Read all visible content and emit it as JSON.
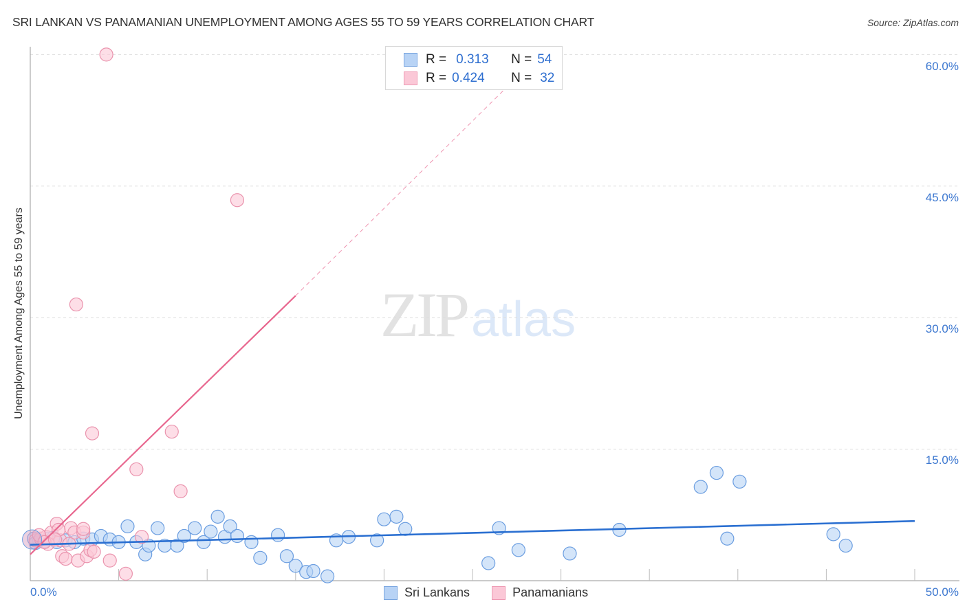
{
  "header": {
    "title": "SRI LANKAN VS PANAMANIAN UNEMPLOYMENT AMONG AGES 55 TO 59 YEARS CORRELATION CHART",
    "source": "Source: ZipAtlas.com"
  },
  "watermark": {
    "zip": "ZIP",
    "atlas": "atlas"
  },
  "legend_top": {
    "rows": [
      {
        "r_label": "R =",
        "r_value": "0.313",
        "n_label": "N =",
        "n_value": "54",
        "color": "#b8d3f5"
      },
      {
        "r_label": "R =",
        "r_value": "0.424",
        "n_label": "N =",
        "n_value": "32",
        "color": "#fbc8d7"
      }
    ]
  },
  "legend_bottom": {
    "items": [
      {
        "label": "Sri Lankans",
        "color": "#b8d3f5"
      },
      {
        "label": "Panamanians",
        "color": "#fbc8d7"
      }
    ]
  },
  "axes": {
    "ylabel": "Unemployment Among Ages 55 to 59 years",
    "y_ticks": [
      "60.0%",
      "45.0%",
      "30.0%",
      "15.0%"
    ],
    "x_ticks": [
      "0.0%",
      "50.0%"
    ]
  },
  "colors": {
    "blue_fill": "#b8d3f5",
    "blue_stroke": "#6a9de0",
    "blue_line": "#2a6fd1",
    "pink_fill": "#fbc8d7",
    "pink_stroke": "#ea93ad",
    "pink_line": "#e8678f",
    "tick_label": "#3d78d0"
  },
  "chart_data": {
    "type": "scatter",
    "title": "SRI LANKAN VS PANAMANIAN UNEMPLOYMENT AMONG AGES 55 TO 59 YEARS CORRELATION CHART",
    "xlabel": "",
    "ylabel": "Unemployment Among Ages 55 to 59 years",
    "xlim": [
      0,
      50
    ],
    "ylim": [
      0,
      62
    ],
    "x_unit": "%",
    "y_unit": "%",
    "y_gridlines": [
      15,
      30,
      45,
      60
    ],
    "legend_position": "bottom",
    "series": [
      {
        "name": "Sri Lankans",
        "R": 0.313,
        "N": 54,
        "trend": {
          "x": [
            0,
            50
          ],
          "y": [
            4.1,
            6.8
          ]
        },
        "points": [
          [
            0.2,
            4.8
          ],
          [
            0.5,
            4.6
          ],
          [
            1.0,
            4.8
          ],
          [
            1.5,
            4.4
          ],
          [
            2.0,
            4.6
          ],
          [
            2.5,
            4.4
          ],
          [
            3.0,
            4.8
          ],
          [
            3.5,
            4.7
          ],
          [
            4.0,
            5.1
          ],
          [
            4.5,
            4.7
          ],
          [
            5.0,
            4.4
          ],
          [
            5.5,
            6.2
          ],
          [
            6.0,
            4.4
          ],
          [
            6.5,
            3.0
          ],
          [
            6.7,
            4.0
          ],
          [
            7.2,
            6.0
          ],
          [
            7.6,
            4.0
          ],
          [
            8.3,
            4.0
          ],
          [
            8.7,
            5.1
          ],
          [
            9.3,
            6.0
          ],
          [
            9.8,
            4.4
          ],
          [
            10.2,
            5.6
          ],
          [
            10.6,
            7.3
          ],
          [
            11.0,
            5.0
          ],
          [
            11.3,
            6.2
          ],
          [
            11.7,
            5.1
          ],
          [
            12.5,
            4.4
          ],
          [
            13.0,
            2.6
          ],
          [
            14.0,
            5.2
          ],
          [
            14.5,
            2.8
          ],
          [
            15.0,
            1.7
          ],
          [
            15.6,
            1.0
          ],
          [
            16.0,
            1.1
          ],
          [
            16.8,
            0.5
          ],
          [
            17.3,
            4.6
          ],
          [
            18.0,
            5.0
          ],
          [
            19.6,
            4.6
          ],
          [
            20.0,
            7.0
          ],
          [
            20.7,
            7.3
          ],
          [
            21.2,
            5.9
          ],
          [
            25.9,
            2.0
          ],
          [
            26.5,
            6.0
          ],
          [
            27.6,
            3.5
          ],
          [
            30.5,
            3.1
          ],
          [
            33.3,
            5.8
          ],
          [
            37.9,
            10.7
          ],
          [
            38.8,
            12.3
          ],
          [
            39.4,
            4.8
          ],
          [
            40.1,
            11.3
          ],
          [
            45.4,
            5.3
          ],
          [
            46.1,
            4.0
          ],
          [
            0.3,
            4.3
          ],
          [
            0.8,
            4.5
          ],
          [
            1.3,
            4.9
          ]
        ]
      },
      {
        "name": "Panamanians",
        "R": 0.424,
        "N": 32,
        "trend": {
          "x": [
            0,
            15
          ],
          "y": [
            3.0,
            32.5
          ],
          "dashed_extension_to": [
            27.3,
            57.0
          ]
        },
        "points": [
          [
            0.3,
            4.6
          ],
          [
            0.6,
            4.8
          ],
          [
            0.9,
            5.0
          ],
          [
            1.2,
            5.5
          ],
          [
            1.5,
            6.5
          ],
          [
            1.7,
            4.6
          ],
          [
            1.8,
            2.8
          ],
          [
            2.0,
            2.5
          ],
          [
            2.3,
            6.0
          ],
          [
            2.5,
            5.5
          ],
          [
            2.7,
            2.3
          ],
          [
            3.0,
            5.5
          ],
          [
            3.2,
            2.8
          ],
          [
            3.4,
            3.5
          ],
          [
            3.6,
            3.3
          ],
          [
            2.6,
            31.5
          ],
          [
            3.5,
            16.8
          ],
          [
            4.3,
            60.0
          ],
          [
            4.5,
            2.3
          ],
          [
            5.4,
            0.8
          ],
          [
            6.0,
            12.7
          ],
          [
            6.3,
            5.0
          ],
          [
            8.0,
            17.0
          ],
          [
            8.5,
            10.2
          ],
          [
            11.7,
            43.4
          ],
          [
            1.0,
            4.2
          ],
          [
            0.5,
            5.2
          ],
          [
            1.6,
            5.8
          ],
          [
            2.2,
            4.2
          ],
          [
            0.8,
            4.4
          ],
          [
            1.4,
            4.7
          ],
          [
            3.0,
            5.9
          ]
        ]
      }
    ]
  }
}
